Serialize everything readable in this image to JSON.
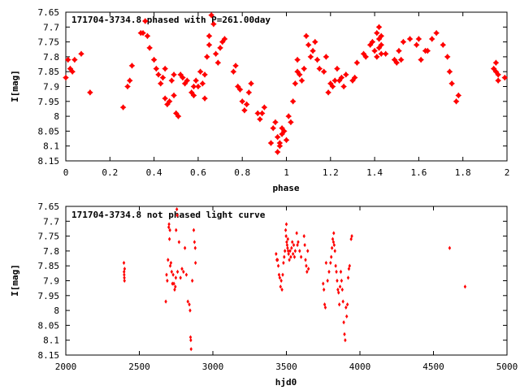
{
  "chart_data": [
    {
      "type": "scatter",
      "title": "171704-3734.8 phased with P=261.00day",
      "xlabel": "phase",
      "ylabel": "I[mag]",
      "xlim": [
        0,
        2
      ],
      "ylim": [
        7.65,
        8.15
      ],
      "y_inverted": true,
      "grid": false,
      "marker_color": "#ff0000",
      "marker": "star",
      "x_ticks": [
        "0",
        "0.2",
        "0.4",
        "0.6",
        "0.8",
        "1",
        "1.2",
        "1.4",
        "1.6",
        "1.8",
        "2"
      ],
      "y_ticks": [
        "7.65",
        "7.7",
        "7.75",
        "7.8",
        "7.85",
        "7.9",
        "7.95",
        "8",
        "8.05",
        "8.1",
        "8.15"
      ],
      "points": [
        [
          0.0,
          7.87
        ],
        [
          0.01,
          7.81
        ],
        [
          0.02,
          7.84
        ],
        [
          0.03,
          7.85
        ],
        [
          0.04,
          7.81
        ],
        [
          0.07,
          7.79
        ],
        [
          0.11,
          7.92
        ],
        [
          0.26,
          7.97
        ],
        [
          0.28,
          7.9
        ],
        [
          0.29,
          7.88
        ],
        [
          0.3,
          7.83
        ],
        [
          0.34,
          7.72
        ],
        [
          0.35,
          7.72
        ],
        [
          0.36,
          7.68
        ],
        [
          0.37,
          7.73
        ],
        [
          0.38,
          7.77
        ],
        [
          0.4,
          7.81
        ],
        [
          0.41,
          7.84
        ],
        [
          0.42,
          7.86
        ],
        [
          0.43,
          7.89
        ],
        [
          0.44,
          7.87
        ],
        [
          0.45,
          7.84
        ],
        [
          0.45,
          7.94
        ],
        [
          0.46,
          7.96
        ],
        [
          0.47,
          7.95
        ],
        [
          0.48,
          7.88
        ],
        [
          0.49,
          7.86
        ],
        [
          0.49,
          7.93
        ],
        [
          0.5,
          7.99
        ],
        [
          0.51,
          8.0
        ],
        [
          0.52,
          7.86
        ],
        [
          0.53,
          7.87
        ],
        [
          0.54,
          7.89
        ],
        [
          0.55,
          7.88
        ],
        [
          0.57,
          7.92
        ],
        [
          0.58,
          7.93
        ],
        [
          0.58,
          7.9
        ],
        [
          0.59,
          7.88
        ],
        [
          0.6,
          7.9
        ],
        [
          0.61,
          7.85
        ],
        [
          0.62,
          7.89
        ],
        [
          0.63,
          7.86
        ],
        [
          0.63,
          7.94
        ],
        [
          0.64,
          7.8
        ],
        [
          0.65,
          7.76
        ],
        [
          0.65,
          7.73
        ],
        [
          0.66,
          7.66
        ],
        [
          0.67,
          7.69
        ],
        [
          0.68,
          7.79
        ],
        [
          0.69,
          7.82
        ],
        [
          0.7,
          7.77
        ],
        [
          0.71,
          7.75
        ],
        [
          0.72,
          7.74
        ],
        [
          0.76,
          7.85
        ],
        [
          0.77,
          7.83
        ],
        [
          0.78,
          7.9
        ],
        [
          0.79,
          7.91
        ],
        [
          0.8,
          7.95
        ],
        [
          0.81,
          7.98
        ],
        [
          0.82,
          7.96
        ],
        [
          0.83,
          7.92
        ],
        [
          0.84,
          7.89
        ],
        [
          0.87,
          7.99
        ],
        [
          0.88,
          8.01
        ],
        [
          0.89,
          7.99
        ],
        [
          0.9,
          7.97
        ],
        [
          0.93,
          8.09
        ],
        [
          0.94,
          8.04
        ],
        [
          0.95,
          8.02
        ],
        [
          0.96,
          8.07
        ],
        [
          0.96,
          8.12
        ],
        [
          0.97,
          8.09
        ],
        [
          0.97,
          8.1
        ],
        [
          0.98,
          8.06
        ],
        [
          0.98,
          8.04
        ],
        [
          0.99,
          8.05
        ],
        [
          1.0,
          8.08
        ],
        [
          1.01,
          8.0
        ],
        [
          1.02,
          8.02
        ],
        [
          1.03,
          7.95
        ],
        [
          1.04,
          7.89
        ],
        [
          1.05,
          7.85
        ],
        [
          1.05,
          7.81
        ],
        [
          1.06,
          7.86
        ],
        [
          1.07,
          7.88
        ],
        [
          1.08,
          7.84
        ],
        [
          1.09,
          7.73
        ],
        [
          1.1,
          7.76
        ],
        [
          1.11,
          7.8
        ],
        [
          1.12,
          7.78
        ],
        [
          1.13,
          7.75
        ],
        [
          1.14,
          7.81
        ],
        [
          1.15,
          7.84
        ],
        [
          1.17,
          7.85
        ],
        [
          1.18,
          7.8
        ],
        [
          1.19,
          7.92
        ],
        [
          1.2,
          7.89
        ],
        [
          1.21,
          7.9
        ],
        [
          1.22,
          7.88
        ],
        [
          1.23,
          7.84
        ],
        [
          1.24,
          7.88
        ],
        [
          1.25,
          7.87
        ],
        [
          1.26,
          7.9
        ],
        [
          1.27,
          7.86
        ],
        [
          1.3,
          7.88
        ],
        [
          1.31,
          7.87
        ],
        [
          1.32,
          7.82
        ],
        [
          1.35,
          7.79
        ],
        [
          1.36,
          7.8
        ],
        [
          1.38,
          7.76
        ],
        [
          1.39,
          7.75
        ],
        [
          1.4,
          7.78
        ],
        [
          1.41,
          7.8
        ],
        [
          1.41,
          7.72
        ],
        [
          1.42,
          7.74
        ],
        [
          1.42,
          7.77
        ],
        [
          1.42,
          7.7
        ],
        [
          1.43,
          7.79
        ],
        [
          1.43,
          7.76
        ],
        [
          1.43,
          7.73
        ],
        [
          1.45,
          7.79
        ],
        [
          1.49,
          7.81
        ],
        [
          1.5,
          7.82
        ],
        [
          1.51,
          7.78
        ],
        [
          1.52,
          7.81
        ],
        [
          1.53,
          7.75
        ],
        [
          1.56,
          7.74
        ],
        [
          1.59,
          7.76
        ],
        [
          1.6,
          7.74
        ],
        [
          1.61,
          7.81
        ],
        [
          1.63,
          7.78
        ],
        [
          1.64,
          7.78
        ],
        [
          1.66,
          7.74
        ],
        [
          1.68,
          7.72
        ],
        [
          1.71,
          7.76
        ],
        [
          1.73,
          7.8
        ],
        [
          1.74,
          7.85
        ],
        [
          1.75,
          7.89
        ],
        [
          1.77,
          7.95
        ],
        [
          1.78,
          7.93
        ],
        [
          1.94,
          7.84
        ],
        [
          1.95,
          7.82
        ],
        [
          1.95,
          7.85
        ],
        [
          1.96,
          7.86
        ],
        [
          1.96,
          7.88
        ],
        [
          1.99,
          7.87
        ]
      ]
    },
    {
      "type": "scatter",
      "title": "171704-3734.8 not phased light curve",
      "xlabel": "hjd0",
      "ylabel": "I[mag]",
      "xlim": [
        2000,
        5000
      ],
      "ylim": [
        7.65,
        8.15
      ],
      "y_inverted": true,
      "grid": false,
      "marker_color": "#ff0000",
      "marker": "diamond",
      "x_ticks": [
        "2000",
        "2500",
        "3000",
        "3500",
        "4000",
        "4500",
        "5000"
      ],
      "y_ticks": [
        "7.65",
        "7.7",
        "7.75",
        "7.8",
        "7.85",
        "7.9",
        "7.95",
        "8",
        "8.05",
        "8.1",
        "8.15"
      ],
      "points": [
        [
          2395,
          7.84
        ],
        [
          2396,
          7.87
        ],
        [
          2397,
          7.88
        ],
        [
          2398,
          7.89
        ],
        [
          2399,
          7.9
        ],
        [
          2400,
          7.86
        ],
        [
          2680,
          7.97
        ],
        [
          2685,
          7.88
        ],
        [
          2690,
          7.9
        ],
        [
          2695,
          7.83
        ],
        [
          2700,
          7.72
        ],
        [
          2702,
          7.71
        ],
        [
          2705,
          7.76
        ],
        [
          2708,
          7.73
        ],
        [
          2710,
          7.85
        ],
        [
          2715,
          7.84
        ],
        [
          2720,
          7.87
        ],
        [
          2725,
          7.91
        ],
        [
          2730,
          7.88
        ],
        [
          2735,
          7.91
        ],
        [
          2740,
          7.93
        ],
        [
          2745,
          7.92
        ],
        [
          2748,
          7.89
        ],
        [
          2750,
          7.73
        ],
        [
          2755,
          7.66
        ],
        [
          2758,
          7.68
        ],
        [
          2760,
          7.87
        ],
        [
          2770,
          7.77
        ],
        [
          2780,
          7.89
        ],
        [
          2790,
          7.86
        ],
        [
          2800,
          7.87
        ],
        [
          2810,
          7.79
        ],
        [
          2820,
          7.88
        ],
        [
          2830,
          7.97
        ],
        [
          2840,
          7.98
        ],
        [
          2845,
          8.0
        ],
        [
          2848,
          8.09
        ],
        [
          2850,
          8.1
        ],
        [
          2852,
          8.13
        ],
        [
          2860,
          7.9
        ],
        [
          2870,
          7.73
        ],
        [
          2875,
          7.77
        ],
        [
          2880,
          7.79
        ],
        [
          2882,
          7.84
        ],
        [
          3430,
          7.81
        ],
        [
          3435,
          7.83
        ],
        [
          3440,
          7.83
        ],
        [
          3445,
          7.85
        ],
        [
          3450,
          7.88
        ],
        [
          3455,
          7.89
        ],
        [
          3460,
          7.92
        ],
        [
          3465,
          7.9
        ],
        [
          3470,
          7.93
        ],
        [
          3475,
          7.88
        ],
        [
          3480,
          7.84
        ],
        [
          3485,
          7.82
        ],
        [
          3490,
          7.8
        ],
        [
          3495,
          7.73
        ],
        [
          3498,
          7.75
        ],
        [
          3500,
          7.71
        ],
        [
          3502,
          7.77
        ],
        [
          3505,
          7.78
        ],
        [
          3508,
          7.79
        ],
        [
          3510,
          7.76
        ],
        [
          3512,
          7.8
        ],
        [
          3515,
          7.81
        ],
        [
          3520,
          7.83
        ],
        [
          3525,
          7.8
        ],
        [
          3530,
          7.82
        ],
        [
          3535,
          7.79
        ],
        [
          3540,
          7.77
        ],
        [
          3545,
          7.81
        ],
        [
          3550,
          7.78
        ],
        [
          3555,
          7.82
        ],
        [
          3560,
          7.8
        ],
        [
          3570,
          7.74
        ],
        [
          3575,
          7.78
        ],
        [
          3580,
          7.77
        ],
        [
          3590,
          7.8
        ],
        [
          3600,
          7.82
        ],
        [
          3620,
          7.75
        ],
        [
          3625,
          7.78
        ],
        [
          3630,
          7.83
        ],
        [
          3635,
          7.85
        ],
        [
          3640,
          7.87
        ],
        [
          3645,
          7.8
        ],
        [
          3650,
          7.86
        ],
        [
          3750,
          7.91
        ],
        [
          3755,
          7.93
        ],
        [
          3760,
          7.98
        ],
        [
          3765,
          7.99
        ],
        [
          3770,
          7.84
        ],
        [
          3780,
          7.9
        ],
        [
          3790,
          7.87
        ],
        [
          3800,
          7.84
        ],
        [
          3805,
          7.82
        ],
        [
          3810,
          7.79
        ],
        [
          3815,
          7.76
        ],
        [
          3820,
          7.77
        ],
        [
          3822,
          7.74
        ],
        [
          3825,
          7.78
        ],
        [
          3830,
          7.8
        ],
        [
          3835,
          7.85
        ],
        [
          3840,
          7.87
        ],
        [
          3845,
          7.9
        ],
        [
          3850,
          7.93
        ],
        [
          3855,
          7.94
        ],
        [
          3860,
          7.98
        ],
        [
          3865,
          7.92
        ],
        [
          3870,
          7.87
        ],
        [
          3875,
          7.9
        ],
        [
          3880,
          7.93
        ],
        [
          3885,
          7.97
        ],
        [
          3890,
          8.04
        ],
        [
          3895,
          8.08
        ],
        [
          3900,
          8.1
        ],
        [
          3905,
          7.99
        ],
        [
          3910,
          8.02
        ],
        [
          3915,
          7.98
        ],
        [
          3920,
          7.89
        ],
        [
          3925,
          7.86
        ],
        [
          3930,
          7.85
        ],
        [
          3940,
          7.76
        ],
        [
          3945,
          7.75
        ],
        [
          4610,
          7.79
        ],
        [
          4715,
          7.92
        ]
      ]
    }
  ]
}
